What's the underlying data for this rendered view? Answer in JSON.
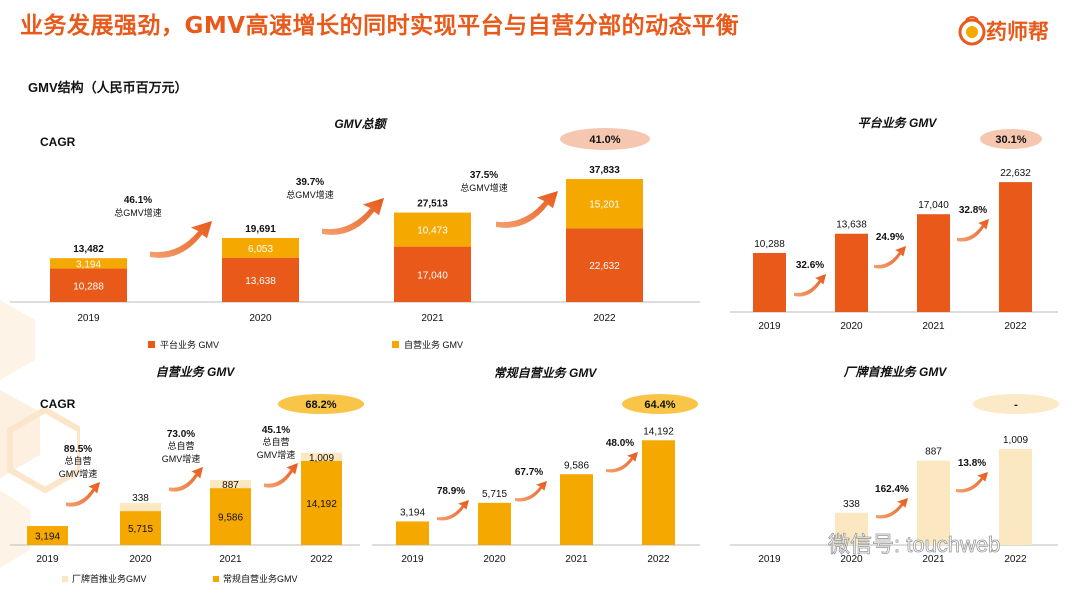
{
  "header": {
    "title": "业务发展强劲，GMV高速增长的同时实现平台与自营分部的动态平衡",
    "brand": "药师帮",
    "subtitle": "GMV结构（人民币百万元）"
  },
  "colors": {
    "accent": "#e8591a",
    "platform": "#e8591a",
    "selfop": "#f5a800",
    "regular": "#f5a800",
    "factory": "#fbe8c0",
    "badge": "#f6c7b0",
    "badge_yellow": "#f8c548",
    "badge_light": "#fbe9c8"
  },
  "watermark": "微信号: touchweb",
  "chart_data": [
    {
      "id": "total",
      "type": "bar",
      "stacked": true,
      "title": "GMV总额",
      "cagr_label": "CAGR",
      "cagr_value": "41.0%",
      "categories": [
        "2019",
        "2020",
        "2021",
        "2022"
      ],
      "totals": [
        "13,482",
        "19,691",
        "27,513",
        "37,833"
      ],
      "series": [
        {
          "name": "平台业务 GMV",
          "values": [
            10288,
            13638,
            17040,
            22632
          ],
          "labels": [
            "10,288",
            "13,638",
            "17,040",
            "22,632"
          ],
          "color": "#e8591a"
        },
        {
          "name": "自营业务 GMV",
          "values": [
            3194,
            6053,
            10473,
            15201
          ],
          "labels": [
            "3,194",
            "6,053",
            "10,473",
            "15,201"
          ],
          "color": "#f5a800"
        }
      ],
      "growth": [
        {
          "pct": "46.1%",
          "label": "总GMV增速"
        },
        {
          "pct": "39.7%",
          "label": "总GMV增速"
        },
        {
          "pct": "37.5%",
          "label": "总GMV增速"
        }
      ],
      "ylim": [
        0,
        40000
      ]
    },
    {
      "id": "platform",
      "type": "bar",
      "title": "平台业务 GMV",
      "cagr_value": "30.1%",
      "categories": [
        "2019",
        "2020",
        "2021",
        "2022"
      ],
      "values": [
        10288,
        13638,
        17040,
        22632
      ],
      "labels": [
        "10,288",
        "13,638",
        "17,040",
        "22,632"
      ],
      "growth": [
        "32.6%",
        "24.9%",
        "32.8%"
      ],
      "ylim": [
        0,
        23000
      ]
    },
    {
      "id": "selfop",
      "type": "bar",
      "stacked": true,
      "title": "自营业务 GMV",
      "cagr_label": "CAGR",
      "cagr_value": "68.2%",
      "categories": [
        "2019",
        "2020",
        "2021",
        "2022"
      ],
      "series": [
        {
          "name": "厂牌首推业务GMV",
          "values": [
            0,
            338,
            887,
            1009
          ],
          "labels": [
            "",
            "338",
            "887",
            "1,009"
          ],
          "color": "#fbe8c0"
        },
        {
          "name": "常规自营业务GMV",
          "values": [
            3194,
            5715,
            9586,
            14192
          ],
          "labels": [
            "3,194",
            "5,715",
            "9,586",
            "14,192"
          ],
          "color": "#f5a800"
        }
      ],
      "growth": [
        {
          "pct": "89.5%",
          "label": "总自营GMV增速"
        },
        {
          "pct": "73.0%",
          "label": "总自营GMV增速"
        },
        {
          "pct": "45.1%",
          "label": "总自营GMV增速"
        }
      ],
      "ylim": [
        0,
        15500
      ]
    },
    {
      "id": "regular",
      "type": "bar",
      "title": "常规自营业务 GMV",
      "cagr_value": "64.4%",
      "categories": [
        "2019",
        "2020",
        "2021",
        "2022"
      ],
      "values": [
        3194,
        5715,
        9586,
        14192
      ],
      "labels": [
        "3,194",
        "5,715",
        "9,586",
        "14,192"
      ],
      "growth": [
        "78.9%",
        "67.7%",
        "48.0%"
      ],
      "ylim": [
        0,
        14500
      ]
    },
    {
      "id": "factory",
      "type": "bar",
      "title": "厂牌首推业务 GMV",
      "cagr_value": "-",
      "categories": [
        "2019",
        "2020",
        "2021",
        "2022"
      ],
      "values": [
        0,
        338,
        887,
        1009
      ],
      "labels": [
        "",
        "338",
        "887",
        "1,009"
      ],
      "growth": [
        "",
        "162.4%",
        "13.8%"
      ],
      "ylim": [
        0,
        1050
      ]
    }
  ]
}
